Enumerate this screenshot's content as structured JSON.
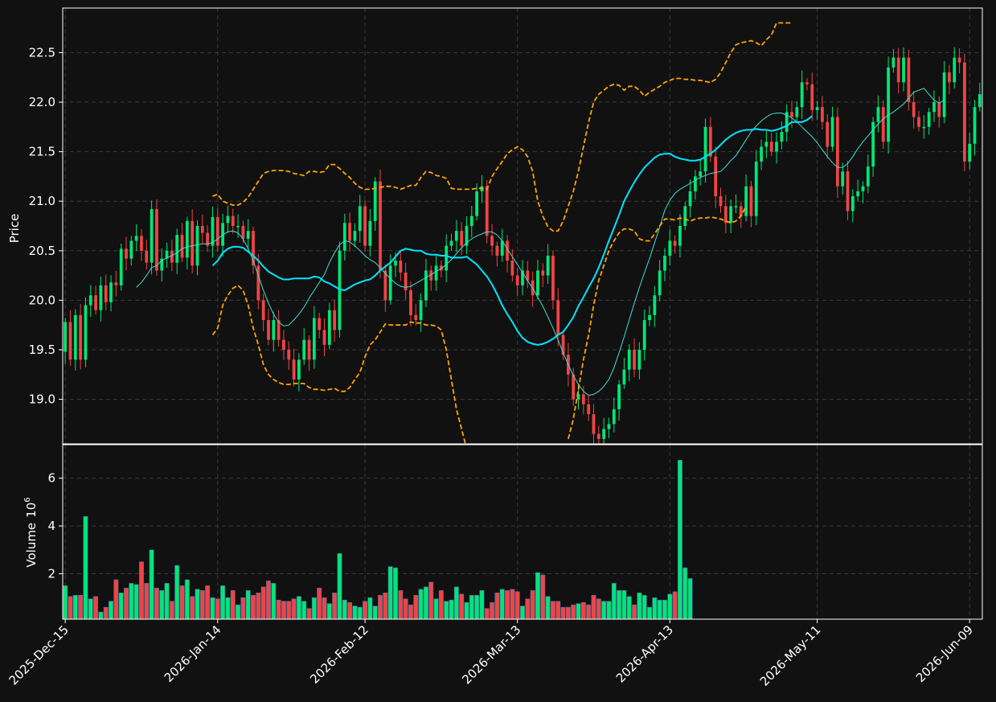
{
  "chart_data": [
    {
      "type": "candlestick",
      "panel": "price",
      "ylabel": "Price",
      "ylim": [
        18.55,
        22.95
      ],
      "yticks": [
        19.0,
        19.5,
        20.0,
        20.5,
        21.0,
        21.5,
        22.0,
        22.5
      ],
      "ytick_labels": [
        "19.0",
        "19.5",
        "20.0",
        "20.5",
        "21.0",
        "21.5",
        "22.0",
        "22.5"
      ],
      "grid": true,
      "colors": {
        "up": "#00e676",
        "down": "#ef4444",
        "ma_fast": "#40e0d0",
        "ma_slow": "#00e5ff",
        "bands": "#ffa500"
      },
      "xticks": [
        {
          "index": 0,
          "label": "2025-Dec-15"
        },
        {
          "index": 30,
          "label": "2026-Jan-14"
        },
        {
          "index": 59,
          "label": "2026-Feb-12"
        },
        {
          "index": 89,
          "label": "2026-Mar-13"
        },
        {
          "index": 119,
          "label": "2026-Apr-13"
        },
        {
          "index": 148,
          "label": "2026-May-11"
        },
        {
          "index": 178,
          "label": "2026-Jun-09"
        }
      ],
      "close": [
        19.78,
        19.4,
        19.85,
        19.4,
        19.95,
        20.05,
        19.9,
        20.15,
        19.98,
        20.18,
        20.15,
        20.52,
        20.42,
        20.6,
        20.65,
        20.5,
        20.38,
        20.92,
        20.3,
        20.42,
        20.5,
        20.38,
        20.66,
        20.43,
        20.8,
        20.35,
        20.75,
        20.68,
        20.55,
        20.84,
        20.55,
        20.78,
        20.85,
        20.75,
        20.75,
        20.62,
        20.7,
        20.35,
        20.0,
        19.8,
        19.6,
        19.8,
        19.6,
        19.5,
        19.4,
        19.2,
        19.4,
        19.6,
        19.4,
        19.82,
        19.7,
        19.55,
        19.9,
        19.7,
        20.5,
        20.78,
        20.6,
        20.7,
        20.95,
        20.55,
        20.8,
        21.2,
        20.3,
        20.0,
        20.35,
        20.4,
        20.28,
        20.1,
        19.85,
        19.8,
        20.0,
        20.3,
        20.2,
        20.35,
        20.3,
        20.55,
        20.6,
        20.7,
        20.55,
        20.75,
        20.85,
        21.1,
        21.15,
        20.65,
        20.55,
        20.45,
        20.6,
        20.4,
        20.25,
        20.15,
        20.3,
        20.2,
        20.05,
        20.3,
        20.25,
        20.45,
        20.0,
        19.65,
        19.45,
        19.25,
        19.0,
        19.05,
        18.95,
        18.85,
        18.65,
        18.6,
        18.7,
        18.75,
        18.9,
        19.15,
        19.3,
        19.5,
        19.3,
        19.5,
        19.8,
        19.85,
        20.05,
        20.3,
        20.45,
        20.6,
        20.55,
        20.75,
        20.95,
        21.1,
        21.25,
        21.3,
        21.75,
        21.45,
        21.05,
        20.95,
        20.78,
        20.95,
        20.95,
        20.85,
        21.15,
        20.85,
        21.4,
        21.55,
        21.6,
        21.5,
        21.6,
        21.7,
        21.9,
        21.85,
        21.95,
        22.2,
        22.18,
        21.92,
        21.95,
        21.8,
        21.55,
        21.85,
        21.15,
        21.3,
        20.9,
        21.05,
        21.1,
        21.15,
        21.35,
        21.8,
        21.95,
        21.6,
        22.35,
        22.45,
        22.2,
        22.45,
        22.0,
        21.85,
        21.75,
        21.75,
        21.9,
        22.0,
        21.85,
        22.3,
        22.2,
        22.45,
        22.4,
        21.4,
        21.58,
        21.95,
        22.08
      ],
      "ma_fast": [
        null,
        null,
        null,
        null,
        null,
        null,
        null,
        null,
        null,
        null,
        null,
        null,
        null,
        null,
        20.13,
        20.18,
        20.25,
        20.33,
        20.35,
        20.4,
        20.43,
        20.45,
        20.48,
        20.52,
        20.54,
        20.55,
        20.56,
        20.57,
        20.57,
        20.58,
        20.62,
        20.66,
        20.69,
        20.7,
        20.68,
        20.62,
        20.52,
        20.4,
        20.25,
        20.1,
        19.97,
        19.86,
        19.78,
        19.74,
        19.75,
        19.8,
        19.86,
        19.93,
        20.02,
        20.1,
        20.18,
        20.26,
        20.38,
        20.48,
        20.56,
        20.6,
        20.59,
        20.55,
        20.5,
        20.45,
        20.41,
        20.38,
        20.33,
        20.27,
        20.22,
        20.17,
        20.14,
        20.13,
        20.14,
        20.17,
        20.2,
        20.23,
        20.26,
        20.29,
        20.32,
        20.36,
        20.41,
        20.47,
        20.53,
        20.58,
        20.62,
        20.65,
        20.67,
        20.69,
        20.69,
        20.66,
        20.6,
        20.52,
        20.44,
        20.36,
        20.28,
        20.2,
        20.12,
        20.03,
        19.94,
        19.83,
        19.72,
        19.6,
        19.47,
        19.35,
        19.24,
        19.15,
        19.08,
        19.04,
        19.05,
        19.08,
        19.13,
        19.2,
        19.32,
        19.47,
        19.63,
        19.8,
        19.97,
        20.13,
        20.28,
        20.42,
        20.58,
        20.74,
        20.91,
        21.01,
        21.08,
        21.12,
        21.15,
        21.18,
        21.21,
        21.24,
        21.26,
        21.28,
        21.29,
        21.3,
        21.35,
        21.41,
        21.46,
        21.54,
        21.62,
        21.7,
        21.76,
        21.81,
        21.85,
        21.88,
        21.89,
        21.89,
        21.87,
        21.84,
        21.8,
        21.75,
        21.7,
        21.65,
        21.59,
        21.52,
        21.45,
        21.39,
        21.34,
        21.34,
        21.38,
        21.45,
        21.53,
        21.6,
        21.66,
        21.72,
        21.78,
        21.83,
        21.87,
        21.9,
        21.94,
        21.98,
        22.04,
        22.1,
        22.12,
        22.14,
        22.08,
        22.02,
        21.99,
        22.02
      ],
      "ma_slow": [
        null,
        null,
        null,
        null,
        null,
        null,
        null,
        null,
        null,
        null,
        null,
        null,
        null,
        null,
        null,
        null,
        null,
        null,
        null,
        null,
        null,
        null,
        null,
        null,
        null,
        null,
        null,
        null,
        null,
        20.35,
        20.4,
        20.48,
        20.52,
        20.54,
        20.54,
        20.53,
        20.49,
        20.45,
        20.4,
        20.34,
        20.29,
        20.26,
        20.23,
        20.21,
        20.21,
        20.22,
        20.22,
        20.22,
        20.22,
        20.24,
        20.23,
        20.19,
        20.17,
        20.14,
        20.11,
        20.1,
        20.13,
        20.16,
        20.18,
        20.2,
        20.21,
        20.25,
        20.3,
        20.34,
        20.38,
        20.44,
        20.5,
        20.52,
        20.51,
        20.5,
        20.5,
        20.47,
        20.46,
        20.46,
        20.45,
        20.45,
        20.43,
        20.43,
        20.43,
        20.44,
        20.4,
        20.36,
        20.3,
        20.24,
        20.16,
        20.06,
        19.95,
        19.86,
        19.78,
        19.69,
        19.62,
        19.58,
        19.56,
        19.55,
        19.56,
        19.58,
        19.61,
        19.65,
        19.68,
        19.75,
        19.83,
        19.94,
        20.03,
        20.13,
        20.22,
        20.33,
        20.46,
        20.6,
        20.73,
        20.86,
        21.0,
        21.1,
        21.19,
        21.27,
        21.34,
        21.39,
        21.44,
        21.47,
        21.48,
        21.48,
        21.45,
        21.43,
        21.42,
        21.41,
        21.41,
        21.42,
        21.45,
        21.48,
        21.52,
        21.57,
        21.62,
        21.66,
        21.69,
        21.71,
        21.72,
        21.72,
        21.73,
        21.72,
        21.72,
        21.71,
        21.72,
        21.74,
        21.76,
        21.8,
        21.8,
        21.8,
        21.82,
        21.86
      ],
      "band_upper": [
        null,
        null,
        null,
        null,
        null,
        null,
        null,
        null,
        null,
        null,
        null,
        null,
        null,
        null,
        null,
        null,
        null,
        null,
        null,
        null,
        null,
        null,
        null,
        null,
        null,
        null,
        null,
        null,
        null,
        21.05,
        21.07,
        21.0,
        20.98,
        20.96,
        20.96,
        20.99,
        21.04,
        21.12,
        21.2,
        21.28,
        21.3,
        21.31,
        21.31,
        21.31,
        21.3,
        21.28,
        21.27,
        21.26,
        21.3,
        21.3,
        21.29,
        21.3,
        21.37,
        21.37,
        21.33,
        21.28,
        21.24,
        21.18,
        21.14,
        21.12,
        21.12,
        21.13,
        21.14,
        21.15,
        21.15,
        21.14,
        21.12,
        21.14,
        21.16,
        21.16,
        21.24,
        21.3,
        21.29,
        21.26,
        21.25,
        21.23,
        21.13,
        21.12,
        21.12,
        21.12,
        21.12,
        21.13,
        21.13,
        21.12,
        21.25,
        21.33,
        21.4,
        21.48,
        21.52,
        21.55,
        21.52,
        21.45,
        21.3,
        21.0,
        20.85,
        20.74,
        20.7,
        20.7,
        20.8,
        20.95,
        21.1,
        21.3,
        21.55,
        21.8,
        22.0,
        22.08,
        22.12,
        22.16,
        22.18,
        22.17,
        22.12,
        22.16,
        22.16,
        22.12,
        22.06,
        22.1,
        22.13,
        22.16,
        22.2,
        22.22,
        22.24,
        22.24,
        22.23,
        22.23,
        22.22,
        22.22,
        22.21,
        22.2,
        22.23,
        22.3,
        22.4,
        22.5,
        22.58,
        22.6,
        22.61,
        22.62,
        22.6,
        22.57,
        22.63,
        22.68,
        22.8,
        22.8,
        22.8,
        22.8
      ],
      "band_lower": [
        null,
        null,
        null,
        null,
        null,
        null,
        null,
        null,
        null,
        null,
        null,
        null,
        null,
        null,
        null,
        null,
        null,
        null,
        null,
        null,
        null,
        null,
        null,
        null,
        null,
        null,
        null,
        null,
        null,
        19.65,
        19.72,
        19.95,
        20.05,
        20.12,
        20.15,
        20.1,
        19.95,
        19.72,
        19.55,
        19.35,
        19.25,
        19.2,
        19.17,
        19.15,
        19.15,
        19.16,
        19.16,
        19.16,
        19.12,
        19.1,
        19.1,
        19.09,
        19.1,
        19.11,
        19.08,
        19.08,
        19.12,
        19.2,
        19.27,
        19.43,
        19.55,
        19.6,
        19.68,
        19.76,
        19.75,
        19.75,
        19.75,
        19.75,
        19.78,
        19.77,
        19.77,
        19.75,
        19.75,
        19.74,
        19.7,
        19.5,
        19.2,
        18.9,
        18.7,
        18.5,
        18.3,
        null,
        null,
        null,
        null,
        null,
        null,
        null,
        null,
        null,
        null,
        null,
        null,
        null,
        null,
        null,
        null,
        null,
        null,
        18.6,
        18.8,
        19.1,
        19.4,
        19.65,
        19.95,
        20.2,
        20.35,
        20.5,
        20.6,
        20.68,
        20.72,
        20.72,
        20.7,
        20.62,
        20.6,
        20.6,
        20.67,
        20.75,
        20.82,
        20.82,
        20.81,
        20.83,
        20.82,
        20.8,
        20.82,
        20.83,
        20.83,
        20.84,
        20.83,
        20.82,
        20.8,
        20.78,
        20.8,
        20.85,
        20.95
      ]
    },
    {
      "type": "bar",
      "panel": "volume",
      "ylabel": "Volume",
      "ylabel_exponent": "6",
      "ylim": [
        0.1,
        7.4
      ],
      "yticks": [
        2,
        4,
        6
      ],
      "ytick_labels": [
        "2",
        "4",
        "6"
      ],
      "units": "millions of shares",
      "values": [
        1.5,
        1.05,
        1.1,
        1.1,
        4.4,
        0.95,
        1.05,
        0.4,
        0.6,
        0.85,
        1.75,
        1.2,
        1.4,
        1.6,
        1.55,
        2.5,
        1.6,
        3.0,
        1.4,
        1.3,
        1.6,
        0.85,
        2.35,
        1.5,
        1.75,
        1.05,
        1.35,
        1.3,
        1.5,
        1.0,
        0.95,
        1.5,
        1.0,
        1.3,
        0.7,
        1.0,
        1.3,
        1.1,
        1.2,
        1.45,
        1.7,
        1.6,
        0.9,
        0.85,
        0.85,
        0.95,
        1.05,
        0.85,
        0.55,
        1.0,
        1.4,
        1.0,
        0.75,
        1.2,
        2.85,
        0.9,
        0.8,
        0.65,
        0.6,
        0.85,
        1.0,
        0.65,
        1.1,
        1.2,
        2.3,
        2.25,
        1.3,
        0.95,
        0.7,
        1.1,
        1.35,
        1.45,
        1.65,
        0.95,
        1.3,
        0.85,
        0.9,
        1.45,
        1.15,
        0.8,
        1.1,
        1.1,
        1.3,
        0.55,
        0.8,
        1.2,
        1.35,
        1.3,
        1.35,
        1.25,
        0.65,
        0.95,
        1.3,
        2.05,
        1.95,
        1.05,
        0.85,
        0.85,
        0.6,
        0.6,
        0.7,
        0.75,
        0.8,
        0.7,
        1.1,
        0.95,
        0.85,
        0.85,
        1.6,
        1.3,
        1.3,
        1.05,
        0.7,
        1.2,
        1.1,
        0.6,
        1.0,
        0.9,
        0.9,
        1.15,
        1.25,
        6.75,
        2.25,
        1.8
      ]
    }
  ]
}
